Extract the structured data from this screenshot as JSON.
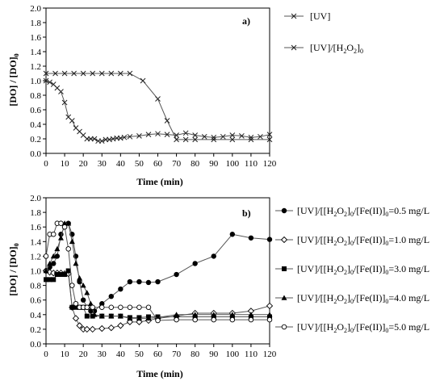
{
  "chart_data": [
    {
      "type": "line",
      "panel_label": "a)",
      "xlabel": "Time (min)",
      "ylabel": "[DO] / [DO]",
      "ylabel_sub": "0",
      "xlim": [
        0,
        120
      ],
      "ylim": [
        0,
        2.0
      ],
      "x_ticks": [
        "0",
        "10",
        "20",
        "30",
        "40",
        "50",
        "60",
        "70",
        "80",
        "90",
        "100",
        "110",
        "120"
      ],
      "y_ticks": [
        "0.0",
        "0.2",
        "0.4",
        "0.6",
        "0.8",
        "1.0",
        "1.2",
        "1.4",
        "1.6",
        "1.8",
        "2.0"
      ],
      "grid": false,
      "legend_position": "right",
      "series": [
        {
          "name": "[UV]",
          "marker": "x",
          "points": [
            [
              0,
              1.1
            ],
            [
              5,
              1.1
            ],
            [
              10,
              1.1
            ],
            [
              15,
              1.1
            ],
            [
              20,
              1.1
            ],
            [
              25,
              1.1
            ],
            [
              30,
              1.1
            ],
            [
              35,
              1.1
            ],
            [
              40,
              1.1
            ],
            [
              45,
              1.1
            ],
            [
              52,
              1.0
            ],
            [
              60,
              0.75
            ],
            [
              65,
              0.45
            ],
            [
              70,
              0.19
            ],
            [
              75,
              0.19
            ],
            [
              80,
              0.19
            ],
            [
              90,
              0.19
            ],
            [
              100,
              0.19
            ],
            [
              110,
              0.19
            ],
            [
              120,
              0.19
            ]
          ]
        },
        {
          "name": "[UV]/[H2O2]",
          "name_main": "[UV]/[H",
          "name_sub1": "2",
          "name_mid": "O",
          "name_sub2": "2",
          "name_close": "]",
          "name_sub3": "0",
          "marker": "x",
          "points": [
            [
              0,
              1.0
            ],
            [
              2,
              0.98
            ],
            [
              4,
              0.95
            ],
            [
              6,
              0.9
            ],
            [
              8,
              0.85
            ],
            [
              10,
              0.7
            ],
            [
              12,
              0.5
            ],
            [
              14,
              0.45
            ],
            [
              16,
              0.35
            ],
            [
              18,
              0.3
            ],
            [
              20,
              0.25
            ],
            [
              22,
              0.2
            ],
            [
              24,
              0.2
            ],
            [
              26,
              0.2
            ],
            [
              28,
              0.17
            ],
            [
              30,
              0.17
            ],
            [
              32,
              0.19
            ],
            [
              34,
              0.19
            ],
            [
              36,
              0.2
            ],
            [
              38,
              0.21
            ],
            [
              40,
              0.21
            ],
            [
              42,
              0.22
            ],
            [
              45,
              0.23
            ],
            [
              50,
              0.24
            ],
            [
              55,
              0.26
            ],
            [
              60,
              0.27
            ],
            [
              65,
              0.26
            ],
            [
              70,
              0.25
            ],
            [
              75,
              0.28
            ],
            [
              80,
              0.25
            ],
            [
              85,
              0.23
            ],
            [
              90,
              0.22
            ],
            [
              95,
              0.23
            ],
            [
              100,
              0.25
            ],
            [
              105,
              0.24
            ],
            [
              110,
              0.22
            ],
            [
              115,
              0.23
            ],
            [
              120,
              0.26
            ]
          ]
        }
      ]
    },
    {
      "type": "line",
      "panel_label": "b)",
      "xlabel": "Time (min)",
      "ylabel": "[DO] / [DO]",
      "ylabel_sub": "0",
      "xlim": [
        0,
        120
      ],
      "ylim": [
        0,
        2.0
      ],
      "x_ticks": [
        "0",
        "10",
        "20",
        "30",
        "40",
        "50",
        "60",
        "70",
        "80",
        "90",
        "100",
        "110",
        "120"
      ],
      "y_ticks": [
        "0.0",
        "0.2",
        "0.4",
        "0.6",
        "0.8",
        "1.0",
        "1.2",
        "1.4",
        "1.6",
        "1.8",
        "2.0"
      ],
      "grid": false,
      "legend_position": "right",
      "series": [
        {
          "name": "[UV]/[[H2O2]0/[Fe(II)]0=0.5 mg/L",
          "conc": "=0.5 mg/L",
          "marker": "filled-circle",
          "points": [
            [
              0,
              1.0
            ],
            [
              2,
              1.05
            ],
            [
              4,
              1.1
            ],
            [
              6,
              1.2
            ],
            [
              8,
              1.5
            ],
            [
              10,
              1.6
            ],
            [
              12,
              1.65
            ],
            [
              14,
              1.5
            ],
            [
              16,
              1.2
            ],
            [
              18,
              0.85
            ],
            [
              20,
              0.6
            ],
            [
              22,
              0.5
            ],
            [
              24,
              0.45
            ],
            [
              26,
              0.45
            ],
            [
              30,
              0.55
            ],
            [
              35,
              0.65
            ],
            [
              40,
              0.75
            ],
            [
              45,
              0.85
            ],
            [
              50,
              0.85
            ],
            [
              55,
              0.84
            ],
            [
              60,
              0.85
            ],
            [
              70,
              0.95
            ],
            [
              80,
              1.1
            ],
            [
              90,
              1.2
            ],
            [
              100,
              1.5
            ],
            [
              110,
              1.45
            ],
            [
              120,
              1.43
            ]
          ]
        },
        {
          "name": "[UV]/[[H2O2]0/[Fe(II)]0=1.0 mg/L",
          "conc": "=1.0 mg/L",
          "marker": "open-diamond",
          "points": [
            [
              0,
              1.0
            ],
            [
              2,
              0.98
            ],
            [
              4,
              0.97
            ],
            [
              6,
              0.97
            ],
            [
              8,
              0.97
            ],
            [
              10,
              0.96
            ],
            [
              12,
              0.96
            ],
            [
              14,
              0.5
            ],
            [
              16,
              0.35
            ],
            [
              18,
              0.25
            ],
            [
              20,
              0.2
            ],
            [
              22,
              0.2
            ],
            [
              25,
              0.2
            ],
            [
              30,
              0.21
            ],
            [
              35,
              0.22
            ],
            [
              40,
              0.25
            ],
            [
              45,
              0.3
            ],
            [
              50,
              0.3
            ],
            [
              55,
              0.32
            ],
            [
              60,
              0.35
            ],
            [
              70,
              0.38
            ],
            [
              80,
              0.42
            ],
            [
              90,
              0.42
            ],
            [
              100,
              0.42
            ],
            [
              110,
              0.45
            ],
            [
              120,
              0.52
            ]
          ]
        },
        {
          "name": "[UV]/[[H2O2]0/[Fe(II)]0=3.0 mg/L",
          "conc": "=3.0 mg/L",
          "marker": "filled-square",
          "points": [
            [
              0,
              0.88
            ],
            [
              2,
              0.88
            ],
            [
              4,
              0.88
            ],
            [
              6,
              0.95
            ],
            [
              8,
              0.95
            ],
            [
              10,
              0.95
            ],
            [
              12,
              1.0
            ],
            [
              14,
              0.5
            ],
            [
              16,
              0.5
            ],
            [
              18,
              0.5
            ],
            [
              20,
              0.5
            ],
            [
              22,
              0.38
            ],
            [
              25,
              0.38
            ],
            [
              30,
              0.38
            ],
            [
              35,
              0.38
            ],
            [
              40,
              0.38
            ],
            [
              45,
              0.36
            ],
            [
              50,
              0.36
            ],
            [
              55,
              0.37
            ],
            [
              60,
              0.37
            ],
            [
              70,
              0.37
            ],
            [
              80,
              0.37
            ],
            [
              90,
              0.37
            ],
            [
              100,
              0.37
            ],
            [
              110,
              0.37
            ],
            [
              120,
              0.37
            ]
          ]
        },
        {
          "name": "[UV]/[[H2O2]0/[Fe(II)]0=4.0 mg/L",
          "conc": "=4.0 mg/L",
          "marker": "filled-triangle",
          "points": [
            [
              0,
              1.0
            ],
            [
              2,
              1.1
            ],
            [
              4,
              1.2
            ],
            [
              6,
              1.3
            ],
            [
              8,
              1.45
            ],
            [
              10,
              1.65
            ],
            [
              12,
              1.65
            ],
            [
              14,
              1.4
            ],
            [
              16,
              1.1
            ],
            [
              18,
              0.9
            ],
            [
              20,
              0.8
            ],
            [
              22,
              0.7
            ],
            [
              24,
              0.55
            ],
            [
              26,
              0.4
            ],
            [
              30,
              0.38
            ],
            [
              35,
              0.38
            ],
            [
              40,
              0.38
            ],
            [
              45,
              0.35
            ],
            [
              50,
              0.35
            ],
            [
              55,
              0.35
            ],
            [
              60,
              0.36
            ],
            [
              70,
              0.4
            ],
            [
              80,
              0.4
            ],
            [
              90,
              0.4
            ],
            [
              100,
              0.4
            ],
            [
              110,
              0.4
            ],
            [
              120,
              0.4
            ]
          ]
        },
        {
          "name": "[UV]/[[H2O2]0/[Fe(II)]0=5.0 mg/L",
          "conc": "=5.0 mg/L",
          "marker": "open-circle",
          "points": [
            [
              0,
              1.2
            ],
            [
              2,
              1.5
            ],
            [
              4,
              1.5
            ],
            [
              6,
              1.65
            ],
            [
              8,
              1.65
            ],
            [
              10,
              1.6
            ],
            [
              12,
              1.3
            ],
            [
              14,
              0.8
            ],
            [
              16,
              0.55
            ],
            [
              18,
              0.5
            ],
            [
              20,
              0.5
            ],
            [
              22,
              0.5
            ],
            [
              25,
              0.5
            ],
            [
              30,
              0.5
            ],
            [
              35,
              0.5
            ],
            [
              40,
              0.5
            ],
            [
              45,
              0.5
            ],
            [
              50,
              0.5
            ],
            [
              55,
              0.5
            ],
            [
              60,
              0.32
            ],
            [
              70,
              0.33
            ],
            [
              80,
              0.33
            ],
            [
              90,
              0.33
            ],
            [
              100,
              0.33
            ],
            [
              110,
              0.33
            ],
            [
              120,
              0.33
            ]
          ]
        }
      ]
    }
  ]
}
